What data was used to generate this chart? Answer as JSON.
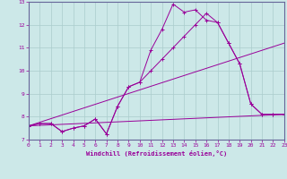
{
  "xlabel": "Windchill (Refroidissement éolien,°C)",
  "background_color": "#cce8e8",
  "line_color": "#990099",
  "grid_color": "#aaccaa",
  "xlim": [
    0,
    23
  ],
  "ylim": [
    7,
    13
  ],
  "yticks": [
    7,
    8,
    9,
    10,
    11,
    12,
    13
  ],
  "xticks": [
    0,
    1,
    2,
    3,
    4,
    5,
    6,
    7,
    8,
    9,
    10,
    11,
    12,
    13,
    14,
    15,
    16,
    17,
    18,
    19,
    20,
    21,
    22,
    23
  ],
  "lines": [
    {
      "x": [
        0,
        1,
        2,
        3,
        4,
        5,
        6,
        7,
        8,
        9,
        10,
        11,
        12,
        13,
        14,
        15,
        16,
        17,
        18,
        19,
        20,
        21,
        22,
        23
      ],
      "y": [
        7.6,
        7.7,
        7.7,
        7.35,
        7.5,
        7.6,
        7.9,
        7.25,
        8.45,
        9.3,
        9.5,
        10.0,
        10.5,
        11.0,
        11.5,
        12.0,
        12.5,
        12.1,
        11.2,
        10.3,
        8.55,
        8.1,
        8.1,
        8.1
      ],
      "marker": true
    },
    {
      "x": [
        0,
        1,
        2,
        3,
        4,
        5,
        6,
        7,
        8,
        9,
        10,
        11,
        12,
        13,
        14,
        15,
        16,
        17,
        18,
        19,
        20,
        21,
        22,
        23
      ],
      "y": [
        7.6,
        7.7,
        7.7,
        7.35,
        7.5,
        7.6,
        7.9,
        7.25,
        8.45,
        9.3,
        9.5,
        10.9,
        11.8,
        12.9,
        12.55,
        12.65,
        12.2,
        12.1,
        11.2,
        10.3,
        8.55,
        8.1,
        8.1,
        8.1
      ],
      "marker": true
    },
    {
      "x": [
        0,
        23
      ],
      "y": [
        7.6,
        11.2
      ],
      "marker": false
    },
    {
      "x": [
        0,
        23
      ],
      "y": [
        7.6,
        8.1
      ],
      "marker": false
    }
  ]
}
